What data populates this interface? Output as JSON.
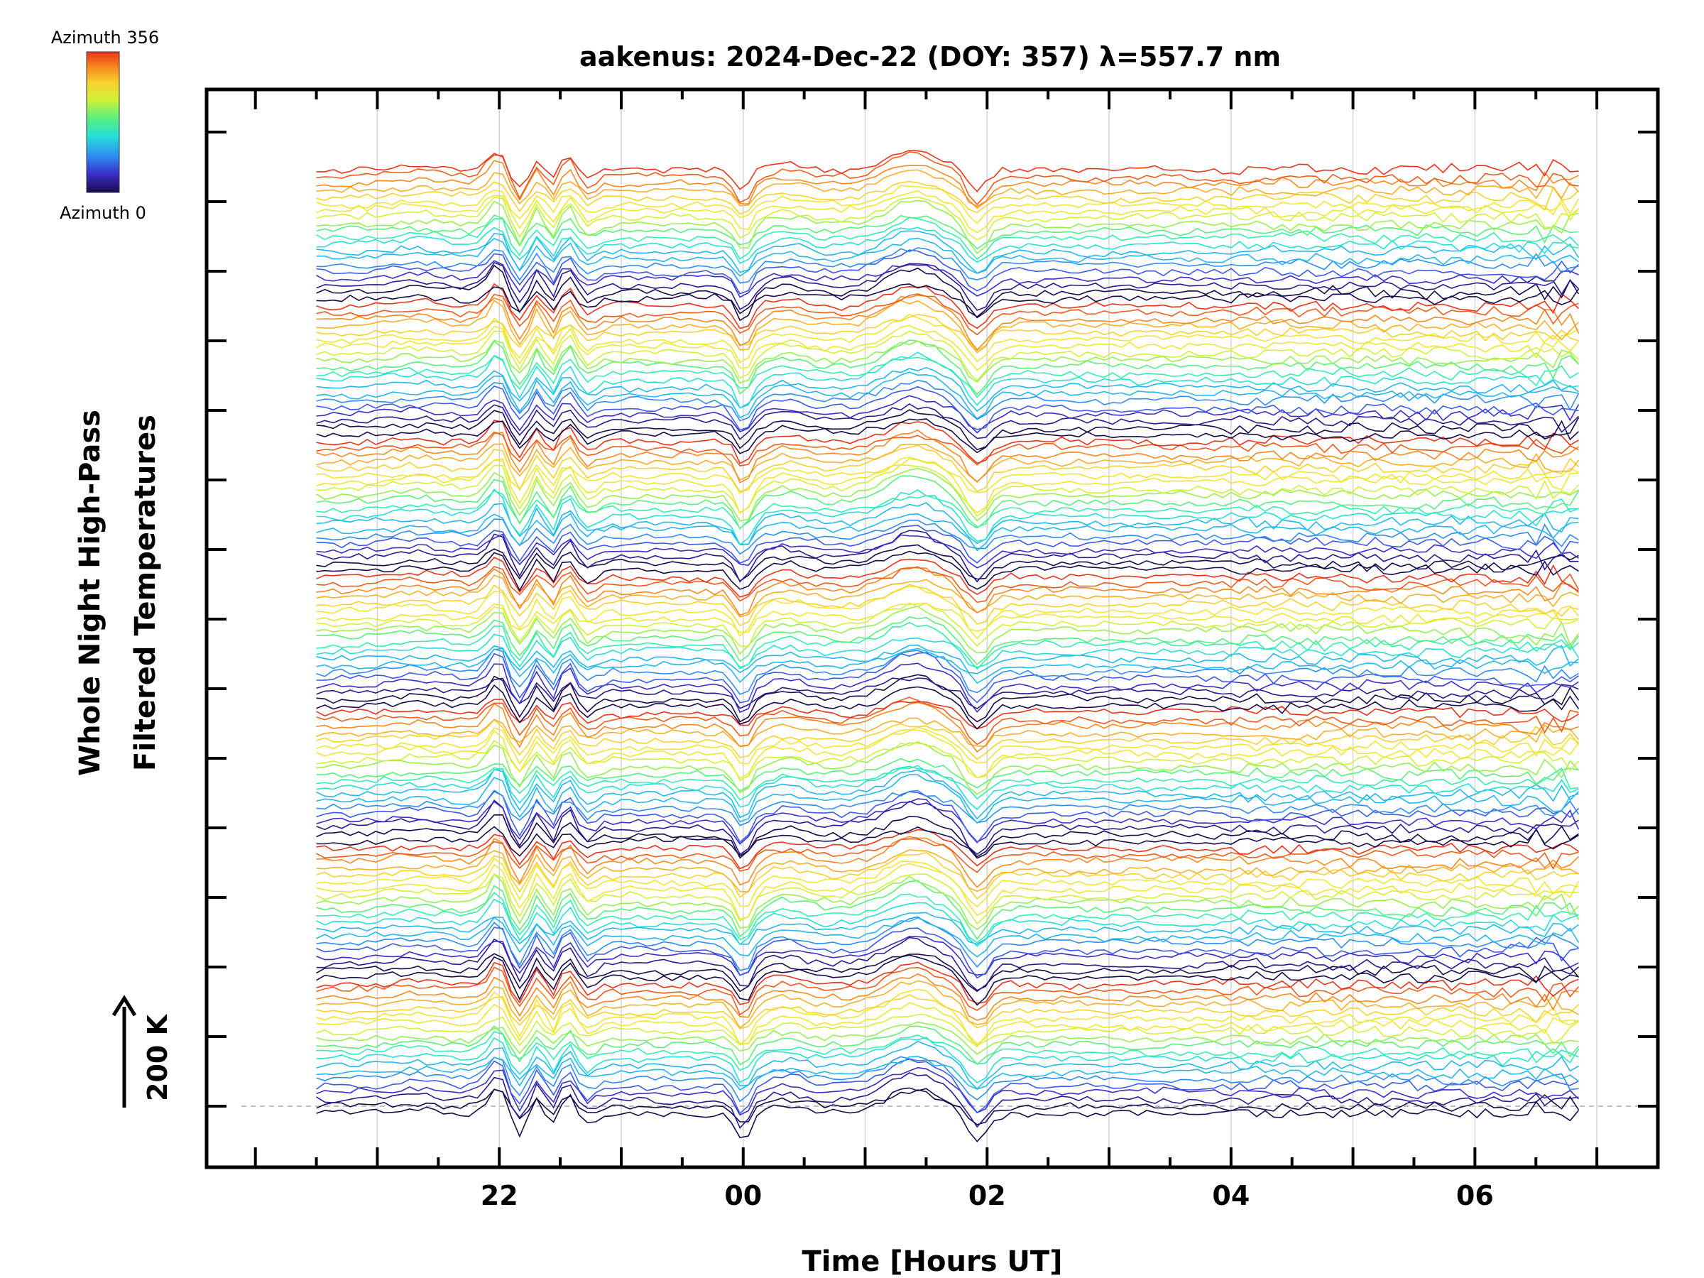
{
  "chart_data": {
    "type": "line",
    "title": "aakenus: 2024-Dec-22 (DOY: 357) λ=557.7 nm",
    "xlabel": "Time [Hours UT]",
    "ylabel_lines": [
      "Whole Night High-Pass",
      "Filtered Temperatures"
    ],
    "x_tick_labels": [
      "22",
      "00",
      "02",
      "04",
      "06"
    ],
    "x_tick_hours": [
      22,
      24,
      26,
      28,
      30
    ],
    "xlim_hours": [
      19.6,
      31.5
    ],
    "data_span_hours": [
      20.5,
      30.85
    ],
    "grid": true,
    "colorbar": {
      "label_top": "Azimuth 356",
      "label_bottom": "Azimuth 0",
      "colors": [
        "#1a0a4a",
        "#3a2ec8",
        "#2e8ef0",
        "#26e0d8",
        "#5af07a",
        "#d2f03a",
        "#f7d22e",
        "#f58a20",
        "#e8341c"
      ]
    },
    "scale_bar_label": "200 K",
    "stack_count": 7,
    "traces_per_stack": 20,
    "trace_colors": [
      "#1a0a4a",
      "#2a1a8c",
      "#3a2ec8",
      "#3c5ae6",
      "#2e8ef0",
      "#22b8ec",
      "#26e0d8",
      "#34eeb0",
      "#5af07a",
      "#96f050",
      "#d2f03a",
      "#f0e632",
      "#f7d22e",
      "#f5b028",
      "#f58a20",
      "#ee5c1c",
      "#e8341c"
    ],
    "common_signal_events": [
      {
        "hour": 22.0,
        "kind": "peak"
      },
      {
        "hour": 22.15,
        "kind": "dip"
      },
      {
        "hour": 22.45,
        "kind": "peak"
      },
      {
        "hour": 22.55,
        "kind": "dip"
      },
      {
        "hour": 24.0,
        "kind": "dip"
      },
      {
        "hour": 25.35,
        "kind": "peak"
      },
      {
        "hour": 25.8,
        "kind": "dip"
      }
    ]
  }
}
